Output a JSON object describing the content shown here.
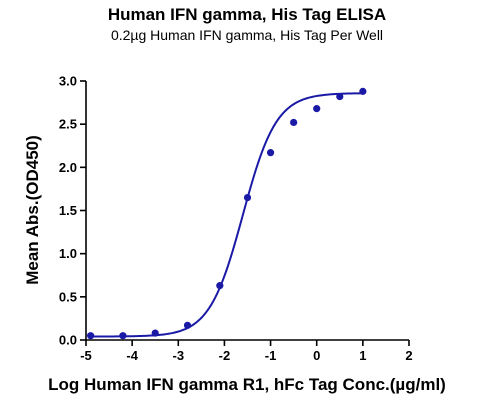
{
  "chart_data": {
    "type": "scatter",
    "title": "Human IFN gamma, His Tag ELISA",
    "subtitle": "0.2µg Human IFN gamma, His Tag Per Well",
    "xlabel": "Log Human IFN gamma R1, hFc Tag Conc.(µg/ml)",
    "ylabel": "Mean Abs.(OD450)",
    "xlim": [
      -5,
      2
    ],
    "ylim": [
      0,
      3
    ],
    "x_ticks": [
      -5,
      -4,
      -3,
      -2,
      -1,
      0,
      1,
      2
    ],
    "y_ticks": [
      0.0,
      0.5,
      1.0,
      1.5,
      2.0,
      2.5,
      3.0
    ],
    "x_tick_labels": [
      "-5",
      "-4",
      "-3",
      "-2",
      "-1",
      "0",
      "1",
      "2"
    ],
    "y_tick_labels": [
      "0.0",
      "0.5",
      "1.0",
      "1.5",
      "2.0",
      "2.5",
      "3.0"
    ],
    "grid": false,
    "series": [
      {
        "points": [
          {
            "x": -4.9,
            "y": 0.05
          },
          {
            "x": -4.2,
            "y": 0.05
          },
          {
            "x": -3.5,
            "y": 0.08
          },
          {
            "x": -2.8,
            "y": 0.17
          },
          {
            "x": -2.1,
            "y": 0.63
          },
          {
            "x": -1.5,
            "y": 1.65
          },
          {
            "x": -1.0,
            "y": 2.17
          },
          {
            "x": -0.5,
            "y": 2.52
          },
          {
            "x": 0.0,
            "y": 2.68
          },
          {
            "x": 0.5,
            "y": 2.82
          },
          {
            "x": 1.0,
            "y": 2.88
          }
        ],
        "fit": {
          "model": "four-parameter logistic",
          "bottom": 0.04,
          "top": 2.86,
          "log_ec50": -1.6,
          "hill_slope": 1.2,
          "x_range": [
            -4.9,
            1.0
          ]
        },
        "color": "#1a1aa6"
      }
    ]
  }
}
